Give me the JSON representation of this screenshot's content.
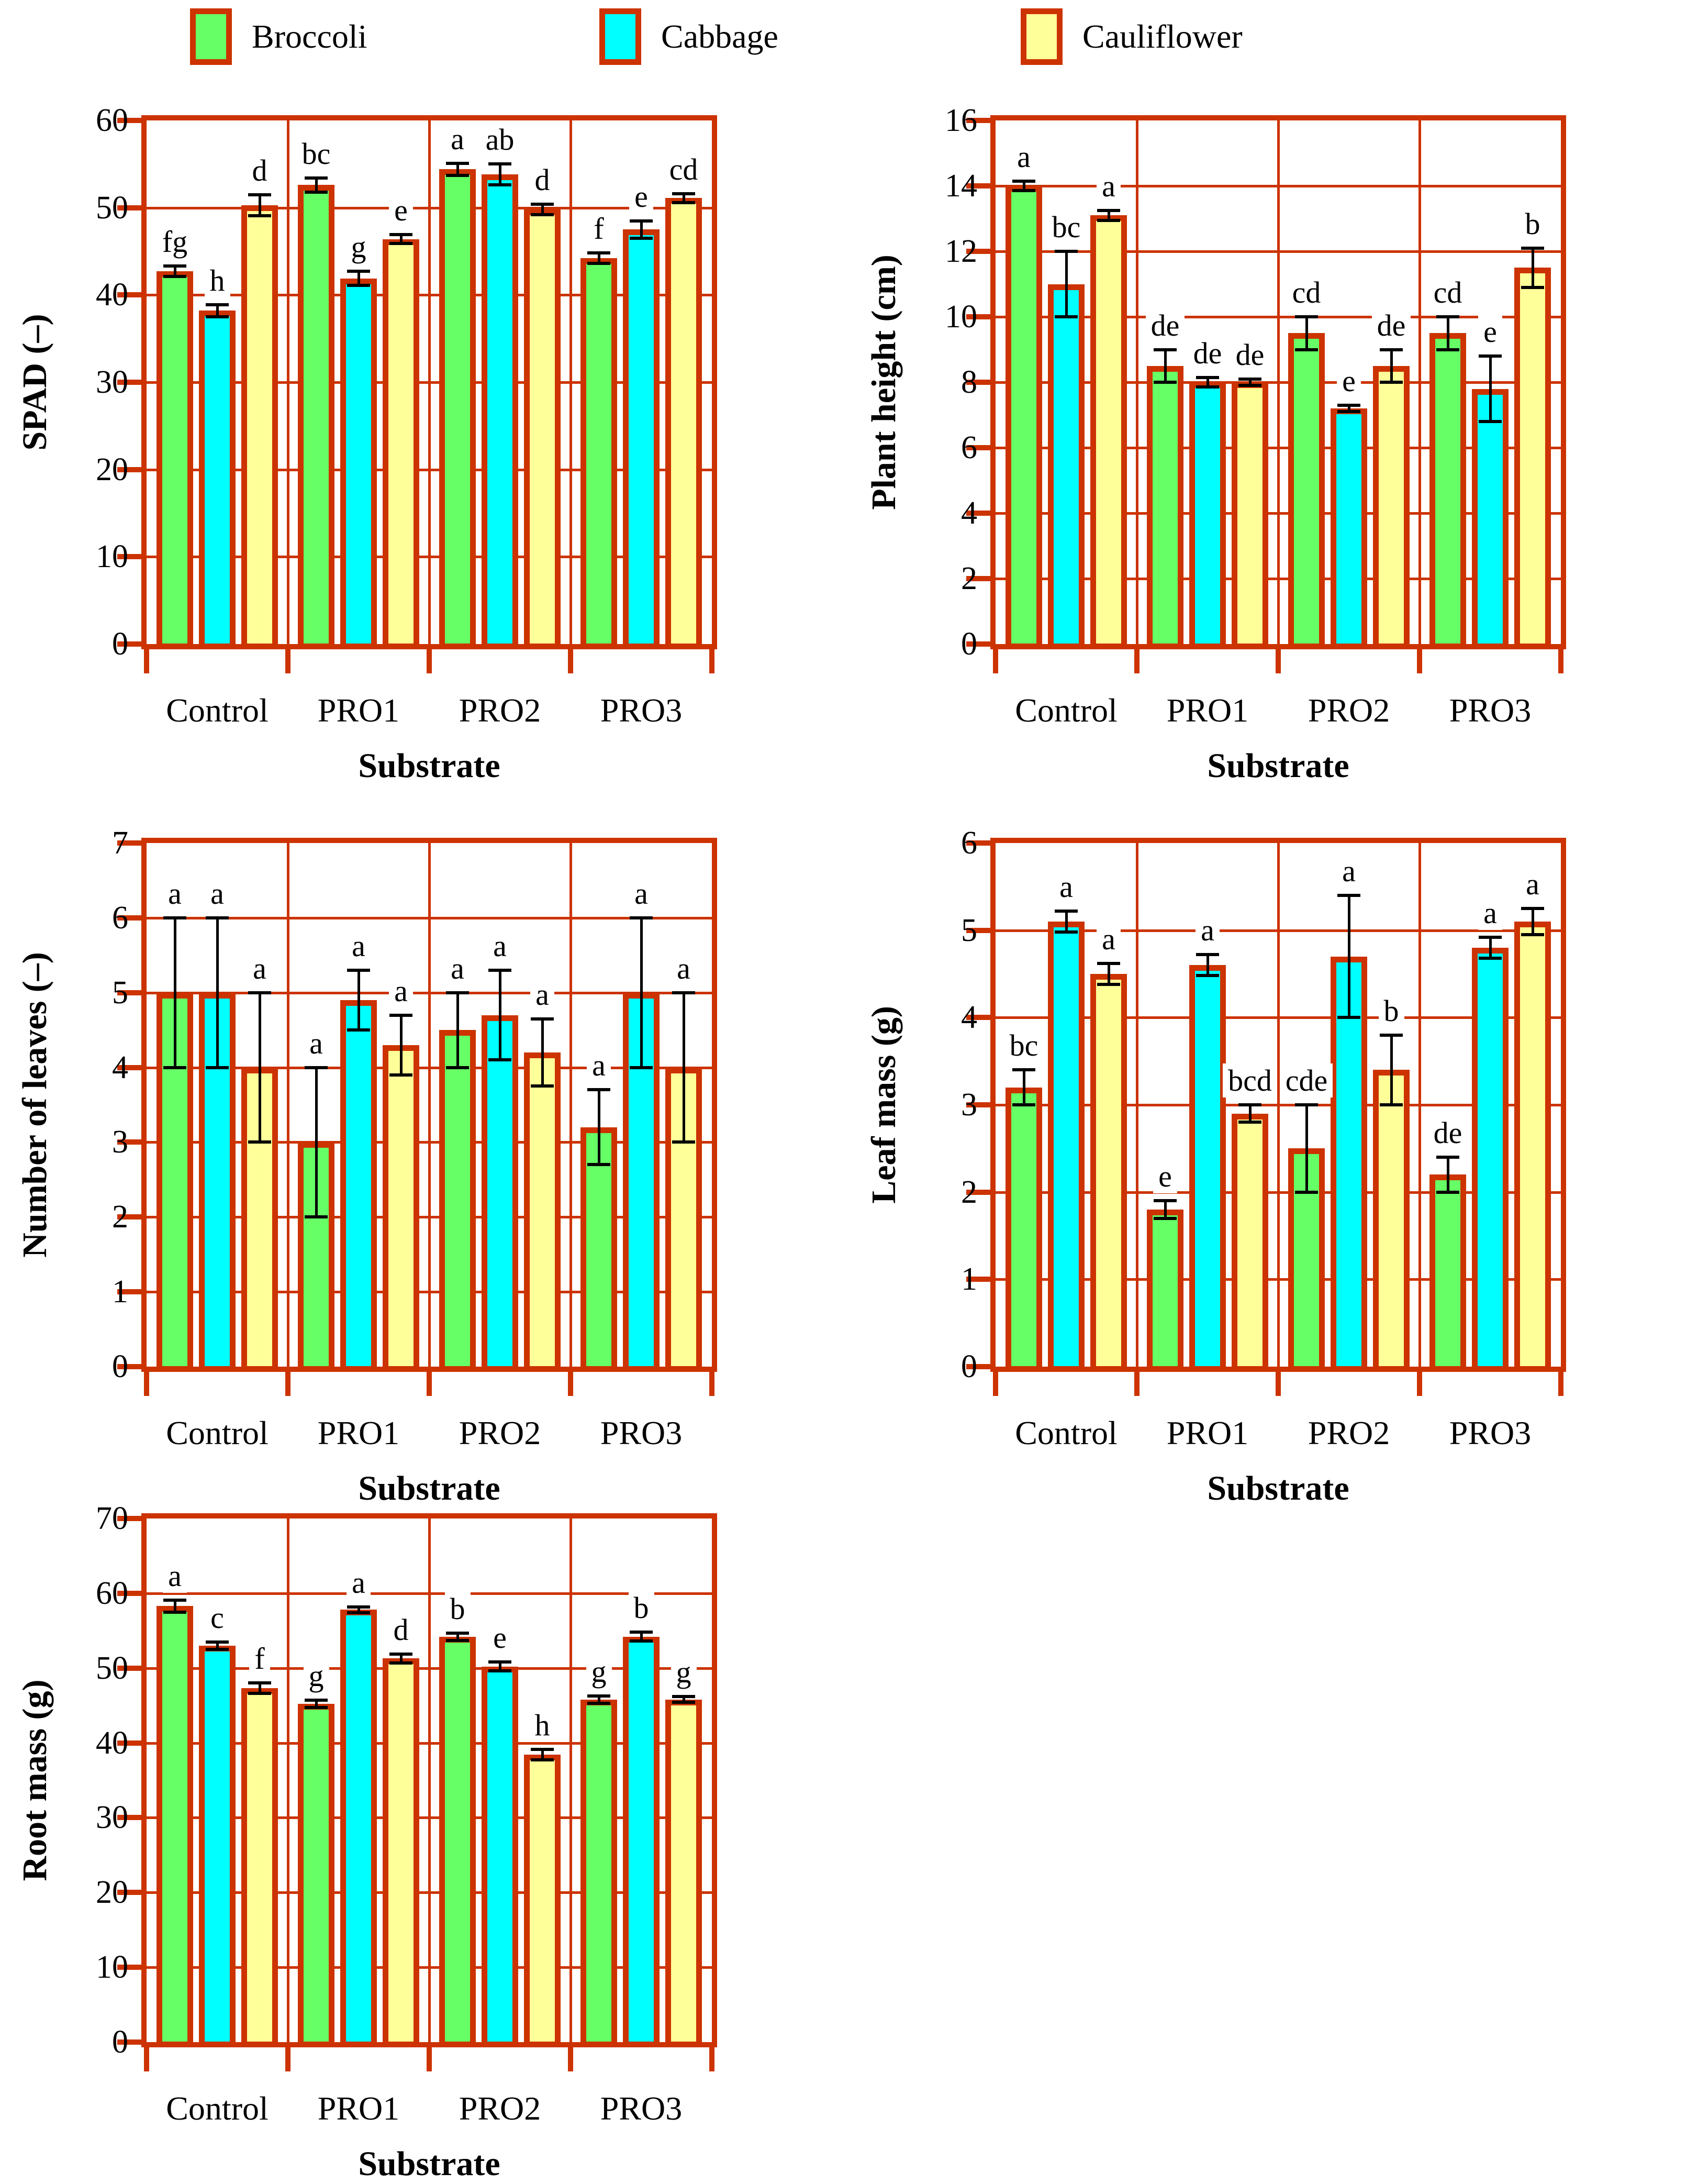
{
  "page": {
    "background": "#ffffff"
  },
  "colors": {
    "accent": "#cc3300",
    "error_bar": "#000000",
    "label_text": "#000000",
    "series": {
      "Broccoli": "#66ff66",
      "Cabbage": "#00ffff",
      "Cauliflower": "#ffff99"
    }
  },
  "legend": {
    "items": [
      {
        "label": "Broccoli",
        "color": "#66ff66"
      },
      {
        "label": "Cabbage",
        "color": "#00ffff"
      },
      {
        "label": "Cauliflower",
        "color": "#ffff99"
      }
    ]
  },
  "chart_data": [
    {
      "id": "spad",
      "type": "bar",
      "ylabel": "SPAD (–)",
      "xlabel": "Substrate",
      "categories": [
        "Control",
        "PRO1",
        "PRO2",
        "PRO3"
      ],
      "ylim": [
        0,
        60
      ],
      "ystep": 10,
      "grid": true,
      "legend_position": "top",
      "series": [
        {
          "name": "Broccoli",
          "values": [
            42.7,
            52.6,
            54.4,
            44.2
          ],
          "errors": [
            0.6,
            0.8,
            0.7,
            0.6
          ],
          "letters": [
            "fg",
            "bc",
            "a",
            "f"
          ]
        },
        {
          "name": "Cabbage",
          "values": [
            38.2,
            41.9,
            53.8,
            47.5
          ],
          "errors": [
            0.7,
            0.8,
            1.2,
            1.0
          ],
          "letters": [
            "h",
            "g",
            "ab",
            "e"
          ]
        },
        {
          "name": "Cauliflower",
          "values": [
            50.3,
            46.4,
            49.8,
            51.1
          ],
          "errors": [
            1.2,
            0.5,
            0.6,
            0.5
          ],
          "letters": [
            "d",
            "e",
            "d",
            "cd"
          ]
        }
      ]
    },
    {
      "id": "plant-height",
      "type": "bar",
      "ylabel": "Plant height (cm)",
      "xlabel": "Substrate",
      "categories": [
        "Control",
        "PRO1",
        "PRO2",
        "PRO3"
      ],
      "ylim": [
        0,
        16
      ],
      "ystep": 2,
      "grid": true,
      "legend_position": "top",
      "series": [
        {
          "name": "Broccoli",
          "values": [
            14.0,
            8.5,
            9.5,
            9.5
          ],
          "errors": [
            0.15,
            0.5,
            0.5,
            0.5
          ],
          "letters": [
            "a",
            "de",
            "cd",
            "cd"
          ]
        },
        {
          "name": "Cabbage",
          "values": [
            11.0,
            8.0,
            7.2,
            7.8
          ],
          "errors": [
            1.0,
            0.15,
            0.1,
            1.0
          ],
          "letters": [
            "bc",
            "de",
            "e",
            "e"
          ]
        },
        {
          "name": "Cauliflower",
          "values": [
            13.1,
            8.0,
            8.5,
            11.5
          ],
          "errors": [
            0.15,
            0.1,
            0.5,
            0.6
          ],
          "letters": [
            "a",
            "de",
            "de",
            "b"
          ]
        }
      ]
    },
    {
      "id": "leaves",
      "type": "bar",
      "ylabel": "Number of leaves (–)",
      "xlabel": "Substrate",
      "categories": [
        "Control",
        "PRO1",
        "PRO2",
        "PRO3"
      ],
      "ylim": [
        0,
        7
      ],
      "ystep": 1,
      "grid": true,
      "legend_position": "top",
      "series": [
        {
          "name": "Broccoli",
          "values": [
            5.0,
            3.0,
            4.5,
            3.2
          ],
          "errors": [
            1.0,
            1.0,
            0.5,
            0.5
          ],
          "letters": [
            "a",
            "a",
            "a",
            "a"
          ]
        },
        {
          "name": "Cabbage",
          "values": [
            5.0,
            4.9,
            4.7,
            5.0
          ],
          "errors": [
            1.0,
            0.4,
            0.6,
            1.0
          ],
          "letters": [
            "a",
            "a",
            "a",
            "a"
          ]
        },
        {
          "name": "Cauliflower",
          "values": [
            4.0,
            4.3,
            4.2,
            4.0
          ],
          "errors": [
            1.0,
            0.4,
            0.45,
            1.0
          ],
          "letters": [
            "a",
            "a",
            "a",
            "a"
          ]
        }
      ]
    },
    {
      "id": "leaf-mass",
      "type": "bar",
      "ylabel": "Leaf mass (g)",
      "xlabel": "Substrate",
      "categories": [
        "Control",
        "PRO1",
        "PRO2",
        "PRO3"
      ],
      "ylim": [
        0,
        6
      ],
      "ystep": 1,
      "grid": true,
      "legend_position": "top",
      "series": [
        {
          "name": "Broccoli",
          "values": [
            3.2,
            1.8,
            2.5,
            2.2
          ],
          "errors": [
            0.2,
            0.1,
            0.5,
            0.2
          ],
          "letters": [
            "bc",
            "e",
            "cde",
            "de"
          ]
        },
        {
          "name": "Cabbage",
          "values": [
            5.1,
            4.6,
            4.7,
            4.8
          ],
          "errors": [
            0.12,
            0.12,
            0.7,
            0.12
          ],
          "letters": [
            "a",
            "a",
            "a",
            "a"
          ]
        },
        {
          "name": "Cauliflower",
          "values": [
            4.5,
            2.9,
            3.4,
            5.1
          ],
          "errors": [
            0.12,
            0.1,
            0.4,
            0.15
          ],
          "letters": [
            "a",
            "bcd",
            "b",
            "a"
          ]
        }
      ]
    },
    {
      "id": "root-mass",
      "type": "bar",
      "ylabel": "Root mass (g)",
      "xlabel": "Substrate",
      "categories": [
        "Control",
        "PRO1",
        "PRO2",
        "PRO3"
      ],
      "ylim": [
        0,
        70
      ],
      "ystep": 10,
      "grid": true,
      "legend_position": "top",
      "series": [
        {
          "name": "Broccoli",
          "values": [
            58.3,
            45.2,
            54.2,
            45.8
          ],
          "errors": [
            0.8,
            0.5,
            0.5,
            0.5
          ],
          "letters": [
            "a",
            "g",
            "b",
            "g"
          ]
        },
        {
          "name": "Cabbage",
          "values": [
            53.0,
            57.8,
            50.2,
            54.2
          ],
          "errors": [
            0.5,
            0.4,
            0.6,
            0.6
          ],
          "letters": [
            "c",
            "a",
            "e",
            "b"
          ]
        },
        {
          "name": "Cauliflower",
          "values": [
            47.3,
            51.3,
            38.4,
            45.8
          ],
          "errors": [
            0.7,
            0.6,
            0.7,
            0.4
          ],
          "letters": [
            "f",
            "d",
            "h",
            "g"
          ]
        }
      ]
    }
  ]
}
